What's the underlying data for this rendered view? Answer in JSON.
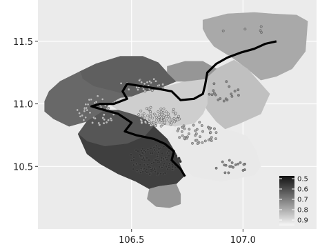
{
  "chart_data": {
    "type": "map",
    "title": "",
    "xlabel": "",
    "ylabel": "",
    "xlim": [
      106.08,
      107.33
    ],
    "ylim": [
      10.0,
      11.83
    ],
    "x_ticks": [
      {
        "value": 106.5,
        "label": "106.5"
      },
      {
        "value": 107.0,
        "label": "107.0"
      }
    ],
    "y_ticks": [
      {
        "value": 10.5,
        "label": "10.5"
      },
      {
        "value": 11.0,
        "label": "11.0"
      },
      {
        "value": 11.5,
        "label": "11.5"
      }
    ],
    "grid": true,
    "panel_background": "#ebebeb",
    "legend": {
      "placement": "bottom-right",
      "items": [
        {
          "value": 0.5,
          "label": "0.5"
        },
        {
          "value": 0.6,
          "label": "0.6"
        },
        {
          "value": 0.7,
          "label": "0.7"
        },
        {
          "value": 0.8,
          "label": "0.8"
        },
        {
          "value": 0.9,
          "label": "0.9"
        }
      ],
      "colors": {
        "low": "#111111",
        "high": "#f7f7f7"
      }
    },
    "regions": [
      {
        "id": "north-east",
        "value": 0.78,
        "polygon": [
          [
            106.82,
            11.67
          ],
          [
            106.93,
            11.72
          ],
          [
            107.05,
            11.73
          ],
          [
            107.13,
            11.72
          ],
          [
            107.24,
            11.71
          ],
          [
            107.29,
            11.66
          ],
          [
            107.28,
            11.42
          ],
          [
            107.22,
            11.28
          ],
          [
            107.15,
            11.22
          ],
          [
            107.08,
            11.19
          ],
          [
            107.02,
            11.28
          ],
          [
            106.96,
            11.36
          ],
          [
            106.87,
            11.46
          ],
          [
            106.84,
            11.53
          ],
          [
            106.82,
            11.6
          ]
        ]
      },
      {
        "id": "east-mid",
        "value": 0.83,
        "polygon": [
          [
            106.88,
            11.28
          ],
          [
            106.96,
            11.35
          ],
          [
            107.02,
            11.28
          ],
          [
            107.06,
            11.2
          ],
          [
            107.12,
            11.08
          ],
          [
            107.08,
            10.92
          ],
          [
            106.98,
            10.84
          ],
          [
            106.92,
            10.8
          ],
          [
            106.88,
            10.86
          ],
          [
            106.84,
            10.95
          ],
          [
            106.8,
            11.08
          ],
          [
            106.83,
            11.2
          ]
        ]
      },
      {
        "id": "central",
        "value": 0.86,
        "polygon": [
          [
            106.62,
            11.12
          ],
          [
            106.74,
            11.18
          ],
          [
            106.84,
            11.2
          ],
          [
            106.84,
            11.0
          ],
          [
            106.82,
            10.92
          ],
          [
            106.78,
            10.84
          ],
          [
            106.7,
            10.82
          ],
          [
            106.62,
            10.84
          ],
          [
            106.56,
            10.88
          ],
          [
            106.5,
            10.92
          ],
          [
            106.44,
            10.95
          ],
          [
            106.4,
            11.0
          ],
          [
            106.45,
            11.05
          ],
          [
            106.5,
            11.06
          ],
          [
            106.56,
            11.1
          ]
        ]
      },
      {
        "id": "south-east",
        "value": 0.92,
        "polygon": [
          [
            106.7,
            10.82
          ],
          [
            106.78,
            10.84
          ],
          [
            106.88,
            10.8
          ],
          [
            106.96,
            10.78
          ],
          [
            107.02,
            10.74
          ],
          [
            107.06,
            10.62
          ],
          [
            107.08,
            10.5
          ],
          [
            107.05,
            10.43
          ],
          [
            106.9,
            10.38
          ],
          [
            106.78,
            10.42
          ],
          [
            106.72,
            10.5
          ],
          [
            106.7,
            10.6
          ],
          [
            106.66,
            10.72
          ]
        ]
      },
      {
        "id": "north",
        "value": 0.62,
        "polygon": [
          [
            106.34,
            11.32
          ],
          [
            106.45,
            11.38
          ],
          [
            106.55,
            11.38
          ],
          [
            106.62,
            11.33
          ],
          [
            106.66,
            11.25
          ],
          [
            106.7,
            11.18
          ],
          [
            106.62,
            11.12
          ],
          [
            106.56,
            11.1
          ],
          [
            106.5,
            11.06
          ],
          [
            106.42,
            11.1
          ],
          [
            106.33,
            11.14
          ],
          [
            106.28,
            11.2
          ],
          [
            106.27,
            11.26
          ]
        ]
      },
      {
        "id": "north-mid",
        "value": 0.74,
        "polygon": [
          [
            106.66,
            11.3
          ],
          [
            106.74,
            11.34
          ],
          [
            106.82,
            11.34
          ],
          [
            106.88,
            11.28
          ],
          [
            106.83,
            11.2
          ],
          [
            106.74,
            11.18
          ],
          [
            106.7,
            11.18
          ],
          [
            106.66,
            11.25
          ]
        ]
      },
      {
        "id": "west",
        "value": 0.64,
        "polygon": [
          [
            106.27,
            11.26
          ],
          [
            106.28,
            11.2
          ],
          [
            106.33,
            11.14
          ],
          [
            106.42,
            11.1
          ],
          [
            106.5,
            11.06
          ],
          [
            106.45,
            11.05
          ],
          [
            106.4,
            11.0
          ],
          [
            106.38,
            10.95
          ],
          [
            106.3,
            10.86
          ],
          [
            106.22,
            10.82
          ],
          [
            106.15,
            10.88
          ],
          [
            106.11,
            10.94
          ],
          [
            106.11,
            11.02
          ],
          [
            106.13,
            11.1
          ],
          [
            106.18,
            11.18
          ]
        ]
      },
      {
        "id": "south-west",
        "value": 0.6,
        "polygon": [
          [
            106.3,
            10.86
          ],
          [
            106.38,
            10.95
          ],
          [
            106.44,
            10.95
          ],
          [
            106.5,
            10.92
          ],
          [
            106.56,
            10.88
          ],
          [
            106.6,
            10.82
          ],
          [
            106.56,
            10.74
          ],
          [
            106.48,
            10.68
          ],
          [
            106.38,
            10.66
          ],
          [
            106.3,
            10.7
          ],
          [
            106.26,
            10.76
          ]
        ]
      },
      {
        "id": "south",
        "value": 0.55,
        "polygon": [
          [
            106.26,
            10.76
          ],
          [
            106.3,
            10.7
          ],
          [
            106.38,
            10.66
          ],
          [
            106.48,
            10.68
          ],
          [
            106.56,
            10.74
          ],
          [
            106.6,
            10.82
          ],
          [
            106.66,
            10.72
          ],
          [
            106.7,
            10.6
          ],
          [
            106.72,
            10.5
          ],
          [
            106.74,
            10.43
          ],
          [
            106.7,
            10.36
          ],
          [
            106.62,
            10.34
          ],
          [
            106.58,
            10.32
          ],
          [
            106.52,
            10.38
          ],
          [
            106.44,
            10.44
          ],
          [
            106.36,
            10.52
          ],
          [
            106.3,
            10.6
          ]
        ]
      },
      {
        "id": "south-tip",
        "value": 0.74,
        "polygon": [
          [
            106.58,
            10.32
          ],
          [
            106.62,
            10.34
          ],
          [
            106.7,
            10.36
          ],
          [
            106.72,
            10.28
          ],
          [
            106.72,
            10.2
          ],
          [
            106.67,
            10.17
          ],
          [
            106.61,
            10.18
          ],
          [
            106.57,
            10.24
          ]
        ]
      }
    ],
    "border_line": [
      [
        107.15,
        11.5
      ],
      [
        107.1,
        11.48
      ],
      [
        107.05,
        11.44
      ],
      [
        106.99,
        11.41
      ],
      [
        106.93,
        11.37
      ],
      [
        106.88,
        11.32
      ],
      [
        106.84,
        11.25
      ],
      [
        106.83,
        11.15
      ],
      [
        106.82,
        11.08
      ],
      [
        106.78,
        11.04
      ],
      [
        106.72,
        11.03
      ],
      [
        106.68,
        11.1
      ],
      [
        106.62,
        11.12
      ],
      [
        106.55,
        11.14
      ],
      [
        106.48,
        11.16
      ],
      [
        106.46,
        11.1
      ],
      [
        106.48,
        11.04
      ],
      [
        106.42,
        11.0
      ],
      [
        106.36,
        11.0
      ],
      [
        106.32,
        10.98
      ],
      [
        106.38,
        10.95
      ],
      [
        106.44,
        10.92
      ],
      [
        106.5,
        10.85
      ],
      [
        106.47,
        10.78
      ],
      [
        106.52,
        10.75
      ],
      [
        106.6,
        10.72
      ],
      [
        106.65,
        10.68
      ],
      [
        106.69,
        10.62
      ],
      [
        106.68,
        10.55
      ],
      [
        106.72,
        10.48
      ],
      [
        106.74,
        10.42
      ]
    ],
    "point_clusters": [
      {
        "center": [
          106.6,
          10.55
        ],
        "spread": [
          0.12,
          0.12
        ],
        "count": 130,
        "fill": "#333333"
      },
      {
        "center": [
          106.62,
          10.9
        ],
        "spread": [
          0.1,
          0.08
        ],
        "count": 90,
        "fill": "#cccccc"
      },
      {
        "center": [
          106.35,
          10.95
        ],
        "spread": [
          0.1,
          0.12
        ],
        "count": 45,
        "fill": "#bbbbbb"
      },
      {
        "center": [
          106.8,
          10.78
        ],
        "spread": [
          0.1,
          0.1
        ],
        "count": 45,
        "fill": "#aaaaaa"
      },
      {
        "center": [
          106.55,
          11.15
        ],
        "spread": [
          0.1,
          0.06
        ],
        "count": 30,
        "fill": "#bbbbbb"
      },
      {
        "center": [
          106.95,
          10.5
        ],
        "spread": [
          0.08,
          0.06
        ],
        "count": 18,
        "fill": "#888888"
      },
      {
        "center": [
          106.92,
          11.1
        ],
        "spread": [
          0.08,
          0.08
        ],
        "count": 18,
        "fill": "#888888"
      },
      {
        "center": [
          107.0,
          11.6
        ],
        "spread": [
          0.1,
          0.06
        ],
        "count": 5,
        "fill": "#999999"
      }
    ]
  }
}
